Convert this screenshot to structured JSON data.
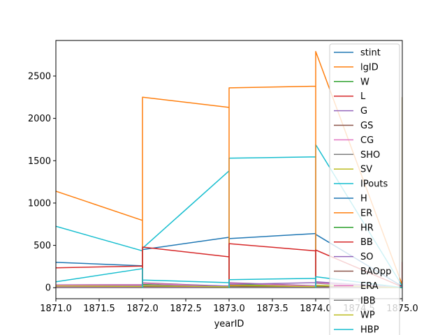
{
  "chart_data": {
    "type": "line",
    "title": "",
    "xlabel": "yearID",
    "ylabel": "",
    "xlim": [
      1871.0,
      1875.0
    ],
    "ylim": [
      -130,
      2920
    ],
    "x_ticks": [
      1871.0,
      1871.5,
      1872.0,
      1872.5,
      1873.0,
      1873.5,
      1874.0,
      1874.5,
      1875.0
    ],
    "x_tick_labels": [
      "1871.0",
      "1871.5",
      "1872.0",
      "1872.5",
      "1873.0",
      "1873.5",
      "1874.0",
      "1874.5",
      "1875.0"
    ],
    "y_ticks": [
      0,
      500,
      1000,
      1500,
      2000,
      2500
    ],
    "y_tick_labels": [
      "0",
      "500",
      "1000",
      "1500",
      "2000",
      "2500"
    ],
    "grid": false,
    "legend_position": "top-right",
    "series": [
      {
        "name": "stint",
        "color": "#1f77b4",
        "points": [
          [
            1871.0,
            1
          ],
          [
            1872.0,
            1
          ],
          [
            1872.0,
            2
          ],
          [
            1873.0,
            1
          ],
          [
            1873.0,
            2
          ],
          [
            1874.0,
            1
          ],
          [
            1874.0,
            2
          ],
          [
            1875.0,
            1
          ],
          [
            1875.0,
            2
          ]
        ]
      },
      {
        "name": "lgID",
        "color": "#ff7f0e",
        "points": [
          [
            1871.0,
            0
          ],
          [
            1872.0,
            0
          ],
          [
            1873.0,
            0
          ],
          [
            1874.0,
            0
          ],
          [
            1875.0,
            0
          ]
        ]
      },
      {
        "name": "W",
        "color": "#2ca02c",
        "points": [
          [
            1871.0,
            19
          ],
          [
            1872.0,
            30
          ],
          [
            1872.0,
            0
          ],
          [
            1872.0,
            38
          ],
          [
            1873.0,
            10
          ],
          [
            1873.0,
            0
          ],
          [
            1873.0,
            41
          ],
          [
            1874.0,
            12
          ],
          [
            1874.0,
            0
          ],
          [
            1874.0,
            52
          ],
          [
            1875.0,
            0
          ],
          [
            1875.0,
            57
          ]
        ]
      },
      {
        "name": "L",
        "color": "#d62728",
        "points": [
          [
            1871.0,
            15
          ],
          [
            1872.0,
            12
          ],
          [
            1872.0,
            1
          ],
          [
            1872.0,
            19
          ],
          [
            1873.0,
            6
          ],
          [
            1873.0,
            1
          ],
          [
            1873.0,
            22
          ],
          [
            1874.0,
            8
          ],
          [
            1874.0,
            1
          ],
          [
            1874.0,
            23
          ],
          [
            1875.0,
            2
          ],
          [
            1875.0,
            20
          ]
        ]
      },
      {
        "name": "G",
        "color": "#9467bd",
        "points": [
          [
            1871.0,
            33
          ],
          [
            1872.0,
            37
          ],
          [
            1872.0,
            1
          ],
          [
            1872.0,
            58
          ],
          [
            1873.0,
            17
          ],
          [
            1873.0,
            1
          ],
          [
            1873.0,
            60
          ],
          [
            1874.0,
            22
          ],
          [
            1874.0,
            1
          ],
          [
            1874.0,
            65
          ],
          [
            1875.0,
            3
          ],
          [
            1875.0,
            75
          ]
        ]
      },
      {
        "name": "GS",
        "color": "#8c564b",
        "points": [
          [
            1871.0,
            31
          ],
          [
            1872.0,
            34
          ],
          [
            1872.0,
            1
          ],
          [
            1872.0,
            55
          ],
          [
            1873.0,
            15
          ],
          [
            1873.0,
            1
          ],
          [
            1873.0,
            56
          ],
          [
            1874.0,
            20
          ],
          [
            1874.0,
            1
          ],
          [
            1874.0,
            60
          ],
          [
            1875.0,
            2
          ],
          [
            1875.0,
            70
          ]
        ]
      },
      {
        "name": "CG",
        "color": "#e377c2",
        "points": [
          [
            1871.0,
            30
          ],
          [
            1872.0,
            33
          ],
          [
            1872.0,
            0
          ],
          [
            1872.0,
            52
          ],
          [
            1873.0,
            14
          ],
          [
            1873.0,
            0
          ],
          [
            1873.0,
            53
          ],
          [
            1874.0,
            18
          ],
          [
            1874.0,
            0
          ],
          [
            1874.0,
            55
          ],
          [
            1875.0,
            1
          ],
          [
            1875.0,
            65
          ]
        ]
      },
      {
        "name": "SHO",
        "color": "#7f7f7f",
        "points": [
          [
            1871.0,
            0
          ],
          [
            1872.0,
            1
          ],
          [
            1872.0,
            0
          ],
          [
            1872.0,
            3
          ],
          [
            1873.0,
            0
          ],
          [
            1873.0,
            0
          ],
          [
            1873.0,
            4
          ],
          [
            1874.0,
            1
          ],
          [
            1874.0,
            0
          ],
          [
            1874.0,
            6
          ],
          [
            1875.0,
            0
          ],
          [
            1875.0,
            8
          ]
        ]
      },
      {
        "name": "SV",
        "color": "#bcbd22",
        "points": [
          [
            1871.0,
            0
          ],
          [
            1872.0,
            1
          ],
          [
            1872.0,
            0
          ],
          [
            1872.0,
            2
          ],
          [
            1873.0,
            0
          ],
          [
            1873.0,
            0
          ],
          [
            1873.0,
            2
          ],
          [
            1874.0,
            0
          ],
          [
            1874.0,
            0
          ],
          [
            1874.0,
            3
          ],
          [
            1875.0,
            0
          ],
          [
            1875.0,
            4
          ]
        ]
      },
      {
        "name": "IPouts",
        "color": "#17becf",
        "points": [
          [
            1871.0,
            725
          ],
          [
            1872.0,
            435
          ],
          [
            1872.0,
            22
          ],
          [
            1872.0,
            465
          ],
          [
            1873.0,
            1380
          ],
          [
            1873.0,
            10
          ],
          [
            1873.0,
            1530
          ],
          [
            1874.0,
            1545
          ],
          [
            1874.0,
            15
          ],
          [
            1874.0,
            1690
          ],
          [
            1875.0,
            20
          ],
          [
            1875.0,
            2250
          ]
        ]
      },
      {
        "name": "H",
        "color": "#1f77b4",
        "points": [
          [
            1871.0,
            300
          ],
          [
            1872.0,
            258
          ],
          [
            1872.0,
            12
          ],
          [
            1872.0,
            450
          ],
          [
            1873.0,
            595
          ],
          [
            1873.0,
            8
          ],
          [
            1873.0,
            580
          ],
          [
            1874.0,
            640
          ],
          [
            1874.0,
            10
          ],
          [
            1874.0,
            630
          ],
          [
            1875.0,
            15
          ],
          [
            1875.0,
            310
          ]
        ]
      },
      {
        "name": "ER",
        "color": "#ff7f0e",
        "points": [
          [
            1871.0,
            1140
          ],
          [
            1872.0,
            795
          ],
          [
            1872.0,
            30
          ],
          [
            1872.0,
            2250
          ],
          [
            1873.0,
            2130
          ],
          [
            1873.0,
            15
          ],
          [
            1873.0,
            2360
          ],
          [
            1874.0,
            2380
          ],
          [
            1874.0,
            25
          ],
          [
            1874.0,
            2790
          ],
          [
            1875.0,
            30
          ],
          [
            1875.0,
            2250
          ]
        ]
      },
      {
        "name": "HR",
        "color": "#2ca02c",
        "points": [
          [
            1871.0,
            5
          ],
          [
            1872.0,
            4
          ],
          [
            1872.0,
            0
          ],
          [
            1872.0,
            8
          ],
          [
            1873.0,
            3
          ],
          [
            1873.0,
            0
          ],
          [
            1873.0,
            9
          ],
          [
            1874.0,
            4
          ],
          [
            1874.0,
            0
          ],
          [
            1874.0,
            10
          ],
          [
            1875.0,
            0
          ],
          [
            1875.0,
            6
          ]
        ]
      },
      {
        "name": "BB",
        "color": "#d62728",
        "points": [
          [
            1871.0,
            235
          ],
          [
            1872.0,
            255
          ],
          [
            1872.0,
            10
          ],
          [
            1872.0,
            480
          ],
          [
            1873.0,
            365
          ],
          [
            1873.0,
            5
          ],
          [
            1873.0,
            520
          ],
          [
            1874.0,
            435
          ],
          [
            1874.0,
            8
          ],
          [
            1874.0,
            445
          ],
          [
            1875.0,
            10
          ],
          [
            1875.0,
            300
          ]
        ]
      },
      {
        "name": "SO",
        "color": "#9467bd",
        "points": [
          [
            1871.0,
            15
          ],
          [
            1872.0,
            20
          ],
          [
            1872.0,
            1
          ],
          [
            1872.0,
            30
          ],
          [
            1873.0,
            20
          ],
          [
            1873.0,
            1
          ],
          [
            1873.0,
            40
          ],
          [
            1874.0,
            60
          ],
          [
            1874.0,
            2
          ],
          [
            1874.0,
            70
          ],
          [
            1875.0,
            2
          ],
          [
            1875.0,
            60
          ]
        ]
      },
      {
        "name": "BAOpp",
        "color": "#8c564b",
        "points": [
          [
            1871.0,
            0
          ],
          [
            1872.0,
            0
          ],
          [
            1873.0,
            0
          ],
          [
            1874.0,
            0
          ],
          [
            1875.0,
            0
          ]
        ]
      },
      {
        "name": "ERA",
        "color": "#e377c2",
        "points": [
          [
            1871.0,
            5
          ],
          [
            1872.0,
            5
          ],
          [
            1872.0,
            10
          ],
          [
            1872.0,
            4
          ],
          [
            1873.0,
            4
          ],
          [
            1873.0,
            12
          ],
          [
            1873.0,
            3
          ],
          [
            1874.0,
            3
          ],
          [
            1874.0,
            8
          ],
          [
            1874.0,
            3
          ],
          [
            1875.0,
            9
          ],
          [
            1875.0,
            3
          ]
        ]
      },
      {
        "name": "IBB",
        "color": "#7f7f7f",
        "points": [
          [
            1871.0,
            0
          ],
          [
            1872.0,
            0
          ],
          [
            1873.0,
            0
          ],
          [
            1874.0,
            0
          ],
          [
            1875.0,
            0
          ]
        ]
      },
      {
        "name": "WP",
        "color": "#bcbd22",
        "points": [
          [
            1871.0,
            20
          ],
          [
            1872.0,
            15
          ],
          [
            1872.0,
            1
          ],
          [
            1872.0,
            25
          ],
          [
            1873.0,
            10
          ],
          [
            1873.0,
            0
          ],
          [
            1873.0,
            30
          ],
          [
            1874.0,
            12
          ],
          [
            1874.0,
            1
          ],
          [
            1874.0,
            28
          ],
          [
            1875.0,
            1
          ],
          [
            1875.0,
            30
          ]
        ]
      },
      {
        "name": "HBP",
        "color": "#17becf",
        "points": [
          [
            1871.0,
            70
          ],
          [
            1872.0,
            225
          ],
          [
            1872.0,
            2
          ],
          [
            1872.0,
            90
          ],
          [
            1873.0,
            60
          ],
          [
            1873.0,
            1
          ],
          [
            1873.0,
            95
          ],
          [
            1874.0,
            110
          ],
          [
            1874.0,
            2
          ],
          [
            1874.0,
            130
          ],
          [
            1875.0,
            2
          ],
          [
            1875.0,
            60
          ]
        ]
      }
    ]
  }
}
